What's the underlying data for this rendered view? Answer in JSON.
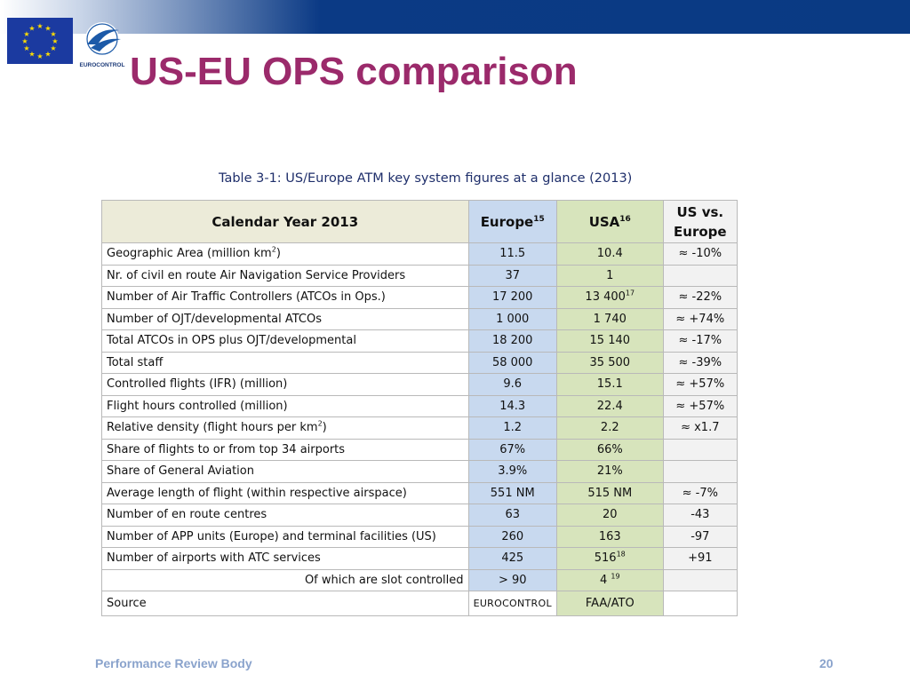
{
  "slide": {
    "title": "US-EU OPS comparison",
    "logo_text": "EUROCONTROL",
    "footer_left": "Performance Review Body",
    "page_number": "20"
  },
  "table": {
    "caption": "Table 3-1: US/Europe ATM key system figures at a glance (2013)",
    "header": {
      "label": "Calendar Year 2013",
      "europe": "Europe",
      "europe_sup": "15",
      "usa": "USA",
      "usa_sup": "16",
      "diff": "US vs. Europe"
    },
    "rows": [
      {
        "label": "Geographic Area (million km",
        "label_sup": "2",
        "label_after": ")",
        "europe": "11.5",
        "usa": "10.4",
        "usa_sup": "",
        "diff": "≈ -10%"
      },
      {
        "label": "Nr. of civil en route Air Navigation Service Providers",
        "label_sup": "",
        "label_after": "",
        "europe": "37",
        "usa": "1",
        "usa_sup": "",
        "diff": ""
      },
      {
        "label": "Number of Air Traffic Controllers (ATCOs in Ops.)",
        "label_sup": "",
        "label_after": "",
        "europe": "17 200",
        "usa": "13 400",
        "usa_sup": "17",
        "diff": "≈ -22%"
      },
      {
        "label": "Number of OJT/developmental ATCOs",
        "label_sup": "",
        "label_after": "",
        "europe": "1 000",
        "usa": "1 740",
        "usa_sup": "",
        "diff": "≈ +74%"
      },
      {
        "label": "Total ATCOs in OPS plus OJT/developmental",
        "label_sup": "",
        "label_after": "",
        "europe": "18 200",
        "usa": "15 140",
        "usa_sup": "",
        "diff": "≈ -17%"
      },
      {
        "label": "Total staff",
        "label_sup": "",
        "label_after": "",
        "europe": "58 000",
        "usa": "35 500",
        "usa_sup": "",
        "diff": "≈ -39%"
      },
      {
        "label": "Controlled flights (IFR) (million)",
        "label_sup": "",
        "label_after": "",
        "europe": "9.6",
        "usa": "15.1",
        "usa_sup": "",
        "diff": "≈ +57%"
      },
      {
        "label": "Flight hours controlled (million)",
        "label_sup": "",
        "label_after": "",
        "europe": "14.3",
        "usa": "22.4",
        "usa_sup": "",
        "diff": "≈ +57%"
      },
      {
        "label": "Relative density (flight hours per km",
        "label_sup": "2",
        "label_after": ")",
        "europe": "1.2",
        "usa": "2.2",
        "usa_sup": "",
        "diff": "≈ x1.7"
      },
      {
        "label": "Share of flights to or from top 34 airports",
        "label_sup": "",
        "label_after": "",
        "europe": "67%",
        "usa": "66%",
        "usa_sup": "",
        "diff": ""
      },
      {
        "label": "Share of General Aviation",
        "label_sup": "",
        "label_after": "",
        "europe": "3.9%",
        "usa": "21%",
        "usa_sup": "",
        "diff": ""
      },
      {
        "label": "Average length of flight (within respective airspace)",
        "label_sup": "",
        "label_after": "",
        "europe": "551 NM",
        "usa": "515 NM",
        "usa_sup": "",
        "diff": "≈ -7%"
      },
      {
        "label": "Number of en route centres",
        "label_sup": "",
        "label_after": "",
        "europe": "63",
        "usa": "20",
        "usa_sup": "",
        "diff": "-43"
      },
      {
        "label": "Number of APP units (Europe) and terminal facilities (US)",
        "label_sup": "",
        "label_after": "",
        "europe": "260",
        "usa": "163",
        "usa_sup": "",
        "diff": "-97"
      },
      {
        "label": "Number of airports with ATC services",
        "label_sup": "",
        "label_after": "",
        "europe": "425",
        "usa": "516",
        "usa_sup": "18",
        "diff": "+91"
      },
      {
        "label": "Of which are slot controlled",
        "label_sup": "",
        "label_after": "",
        "europe": "> 90",
        "usa": "4 ",
        "usa_sup": "19",
        "diff": ""
      }
    ],
    "source": {
      "label": "Source",
      "europe": "EUROCONTROL",
      "usa": "FAA/ATO",
      "diff": ""
    }
  }
}
